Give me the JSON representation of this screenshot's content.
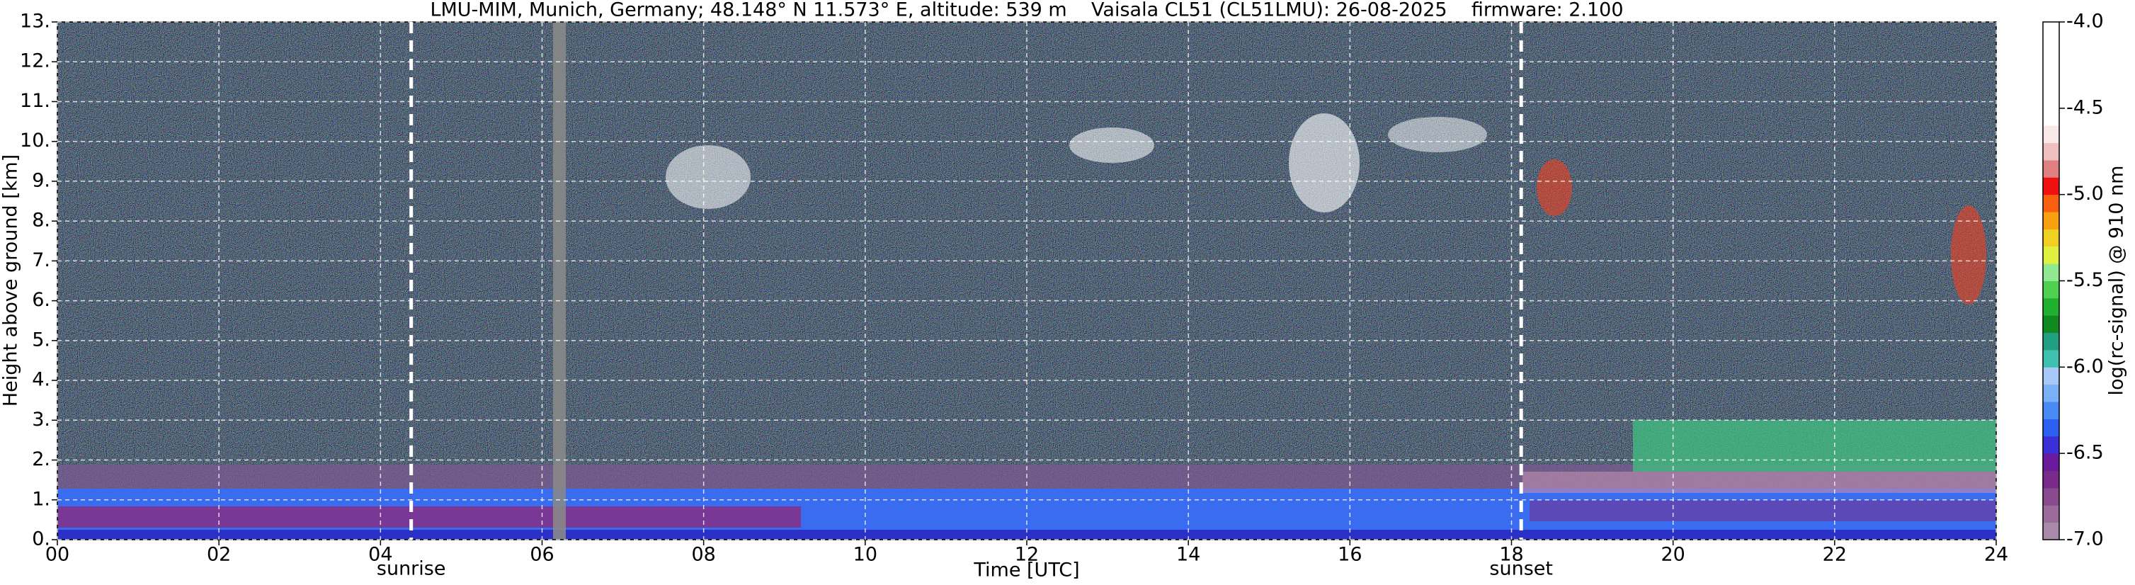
{
  "chart_data": {
    "type": "heatmap",
    "title": "LMU-MIM, Munich, Germany; 48.148° N 11.573° E, altitude: 539 m    Vaisala CL51 (CL51LMU): 26-08-2025    firmware: 2.100",
    "x_label": "Time [UTC]",
    "y_label": "Height above ground [km]",
    "xlim": [
      0,
      24
    ],
    "xticks": [
      {
        "value": 0,
        "label": "00"
      },
      {
        "value": 2,
        "label": "02"
      },
      {
        "value": 4,
        "label": "04"
      },
      {
        "value": 6,
        "label": "06"
      },
      {
        "value": 8,
        "label": "08"
      },
      {
        "value": 10,
        "label": "10"
      },
      {
        "value": 12,
        "label": "12"
      },
      {
        "value": 14,
        "label": "14"
      },
      {
        "value": 16,
        "label": "16"
      },
      {
        "value": 18,
        "label": "18"
      },
      {
        "value": 20,
        "label": "20"
      },
      {
        "value": 22,
        "label": "22"
      },
      {
        "value": 24,
        "label": "24"
      }
    ],
    "ylim": [
      0,
      13
    ],
    "yticks": [
      {
        "value": 0,
        "label": "0."
      },
      {
        "value": 1,
        "label": "1."
      },
      {
        "value": 2,
        "label": "2."
      },
      {
        "value": 3,
        "label": "3."
      },
      {
        "value": 4,
        "label": "4."
      },
      {
        "value": 5,
        "label": "5."
      },
      {
        "value": 6,
        "label": "6."
      },
      {
        "value": 7,
        "label": "7."
      },
      {
        "value": 8,
        "label": "8."
      },
      {
        "value": 9,
        "label": "9."
      },
      {
        "value": 10,
        "label": "10."
      },
      {
        "value": 11,
        "label": "11."
      },
      {
        "value": 12,
        "label": "12."
      },
      {
        "value": 13,
        "label": "13."
      }
    ],
    "grid": true,
    "annotations": [
      {
        "text": "sunrise",
        "x": 4.38
      },
      {
        "text": "sunset",
        "x": 18.12
      }
    ],
    "colorbar": {
      "label": "log(rc-signal) @ 910 nm",
      "clim": [
        -7,
        -4
      ],
      "ticks": [
        {
          "value": -4.0,
          "label": "-4.0"
        },
        {
          "value": -4.5,
          "label": "-4.5"
        },
        {
          "value": -5.0,
          "label": "-5.0"
        },
        {
          "value": -5.5,
          "label": "-5.5"
        },
        {
          "value": -6.0,
          "label": "-6.0"
        },
        {
          "value": -6.5,
          "label": "-6.5"
        },
        {
          "value": -7.0,
          "label": "-7.0"
        }
      ],
      "colors": [
        "#a88aa8",
        "#9b6b9b",
        "#8a4a8e",
        "#7a2a8a",
        "#6a1a9a",
        "#3b2fd8",
        "#2b5ff0",
        "#4a8af5",
        "#7ab0f8",
        "#a8c8fa",
        "#40c0b0",
        "#20a080",
        "#108a20",
        "#20b030",
        "#50d050",
        "#90e890",
        "#e0f040",
        "#f0d020",
        "#f8a010",
        "#f86010",
        "#f01010",
        "#e08080",
        "#f0c0c0",
        "#f8e8e8",
        "#ffffff",
        "#ffffff",
        "#ffffff",
        "#ffffff",
        "#ffffff",
        "#ffffff"
      ]
    }
  }
}
